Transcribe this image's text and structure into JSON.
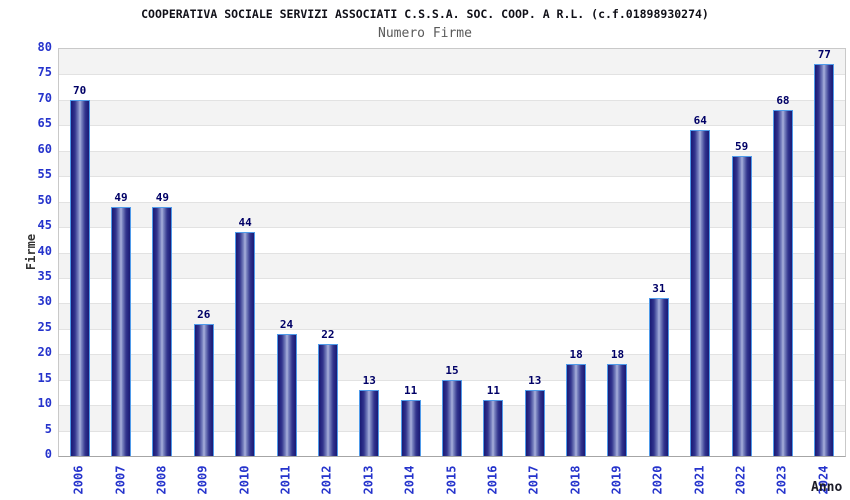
{
  "header": {
    "title": "COOPERATIVA SOCIALE SERVIZI ASSOCIATI C.S.S.A. SOC. COOP. A R.L. (c.f.01898930274)",
    "subtitle": "Numero Firme"
  },
  "chart_data": {
    "type": "bar",
    "title": "COOPERATIVA SOCIALE SERVIZI ASSOCIATI C.S.S.A. SOC. COOP. A R.L. (c.f.01898930274)",
    "subtitle": "Numero Firme",
    "xlabel": "Anno",
    "ylabel": "Firme",
    "categories": [
      "2006",
      "2007",
      "2008",
      "2009",
      "2010",
      "2011",
      "2012",
      "2013",
      "2014",
      "2015",
      "2016",
      "2017",
      "2018",
      "2019",
      "2020",
      "2021",
      "2022",
      "2023",
      "2024"
    ],
    "values": [
      70,
      49,
      49,
      26,
      44,
      24,
      22,
      13,
      11,
      15,
      11,
      13,
      18,
      18,
      31,
      64,
      59,
      68,
      77
    ],
    "ylim": [
      0,
      80
    ],
    "ytick_step": 5,
    "grid": "horizontal gridlines every 5 with alternating background bands",
    "legend": "none"
  },
  "colors": {
    "tick_label_blue": "#2533cc",
    "value_label_navy": "#000066",
    "bar_edge_navy": "#1b1b74",
    "bar_center_light": "#a9b1dc",
    "bar_border_lightblue": "#4f9bea",
    "band_gray": "#f3f3f3",
    "band_white": "#ffffff",
    "gridline": "#e2e2e2",
    "plot_border": "#c9c9c9",
    "title_color": "#101018",
    "subtitle_color": "#5a5a5a"
  }
}
